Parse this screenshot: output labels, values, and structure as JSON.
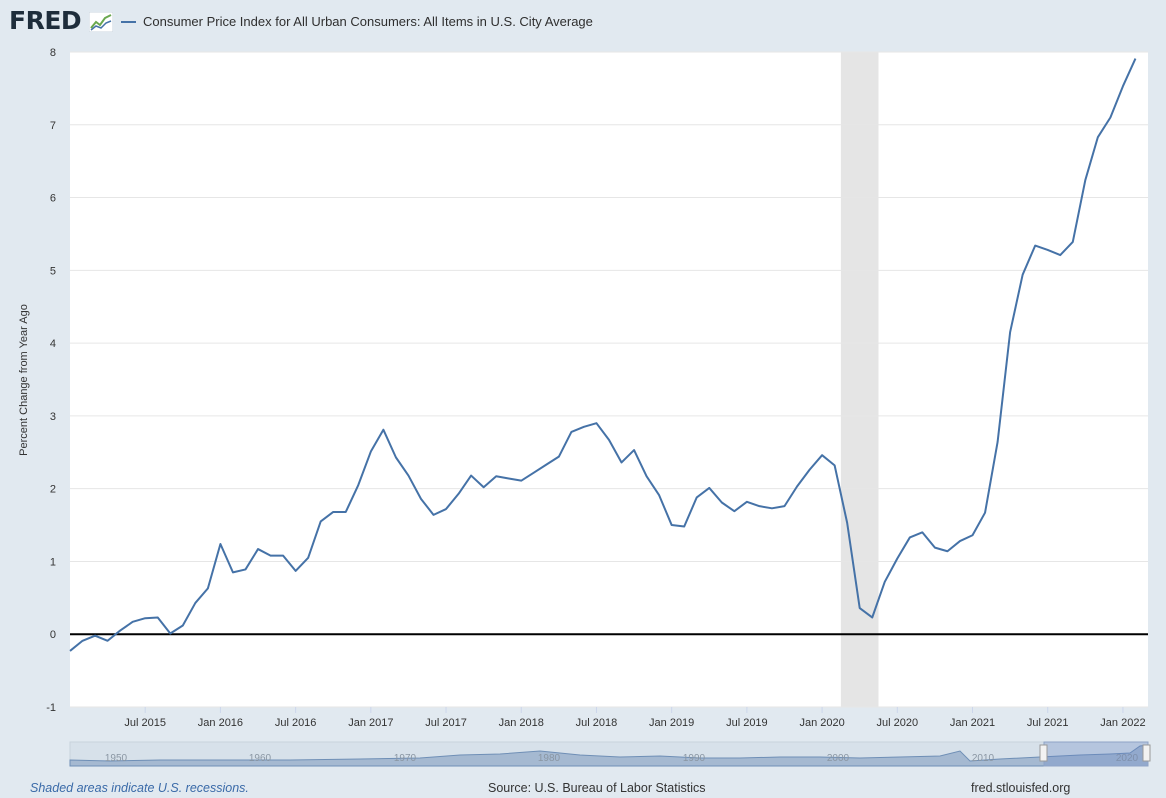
{
  "logo": {
    "text": "FRED"
  },
  "legend": {
    "label": "Consumer Price Index for All Urban Consumers: All Items in U.S. City Average",
    "color": "#4572a7"
  },
  "footer": {
    "recession_note": "Shaded areas indicate U.S. recessions.",
    "source": "Source: U.S. Bureau of Labor Statistics",
    "url": "fred.stlouisfed.org"
  },
  "navigator": {
    "year_labels": [
      "1950",
      "1960",
      "1970",
      "1980",
      "1990",
      "2000",
      "2010",
      "2020"
    ]
  },
  "chart_data": {
    "type": "line",
    "ylabel": "Percent Change from Year Ago",
    "ylim": [
      -1,
      8
    ],
    "yticks": [
      -1,
      0,
      1,
      2,
      3,
      4,
      5,
      6,
      7,
      8
    ],
    "xlim": [
      "2015-01",
      "2022-03"
    ],
    "xticks": [
      {
        "date": "2015-07",
        "label": "Jul 2015"
      },
      {
        "date": "2016-01",
        "label": "Jan 2016"
      },
      {
        "date": "2016-07",
        "label": "Jul 2016"
      },
      {
        "date": "2017-01",
        "label": "Jan 2017"
      },
      {
        "date": "2017-07",
        "label": "Jul 2017"
      },
      {
        "date": "2018-01",
        "label": "Jan 2018"
      },
      {
        "date": "2018-07",
        "label": "Jul 2018"
      },
      {
        "date": "2019-01",
        "label": "Jan 2019"
      },
      {
        "date": "2019-07",
        "label": "Jul 2019"
      },
      {
        "date": "2020-01",
        "label": "Jan 2020"
      },
      {
        "date": "2020-07",
        "label": "Jul 2020"
      },
      {
        "date": "2021-01",
        "label": "Jan 2021"
      },
      {
        "date": "2021-07",
        "label": "Jul 2021"
      },
      {
        "date": "2022-01",
        "label": "Jan 2022"
      }
    ],
    "recession": {
      "start": "2020-03",
      "end": "2020-05"
    },
    "grid": true,
    "zero_line": true,
    "series": [
      {
        "name": "Consumer Price Index for All Urban Consumers: All Items in U.S. City Average",
        "color": "#4572a7",
        "start": "2015-01",
        "values": [
          -0.23,
          -0.09,
          -0.02,
          -0.09,
          0.05,
          0.17,
          0.22,
          0.23,
          0.01,
          0.12,
          0.43,
          0.63,
          1.24,
          0.85,
          0.89,
          1.17,
          1.08,
          1.08,
          0.87,
          1.05,
          1.55,
          1.68,
          1.68,
          2.05,
          2.51,
          2.81,
          2.43,
          2.18,
          1.86,
          1.64,
          1.72,
          1.93,
          2.18,
          2.02,
          2.17,
          2.14,
          2.11,
          2.22,
          2.33,
          2.44,
          2.78,
          2.85,
          2.9,
          2.67,
          2.36,
          2.53,
          2.17,
          1.91,
          1.5,
          1.48,
          1.88,
          2.01,
          1.81,
          1.69,
          1.82,
          1.76,
          1.73,
          1.76,
          2.03,
          2.26,
          2.46,
          2.32,
          1.53,
          0.36,
          0.23,
          0.72,
          1.04,
          1.33,
          1.4,
          1.19,
          1.14,
          1.28,
          1.36,
          1.67,
          2.64,
          4.15,
          4.94,
          5.34,
          5.28,
          5.21,
          5.39,
          6.24,
          6.83,
          7.1,
          7.53,
          7.91
        ]
      }
    ]
  }
}
